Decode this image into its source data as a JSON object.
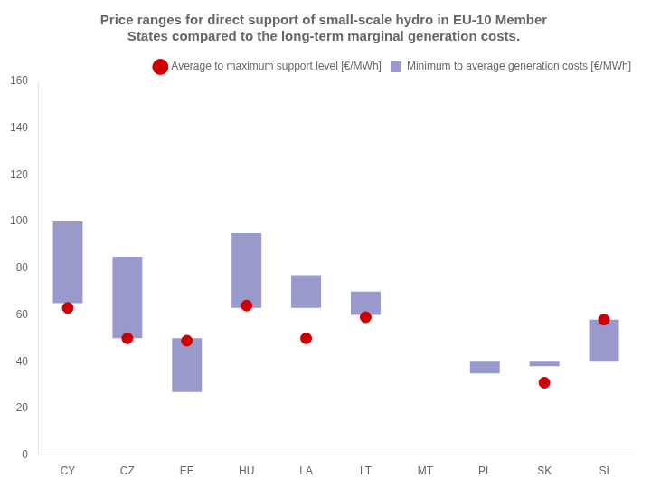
{
  "chart_data": {
    "type": "bar",
    "title": [
      "Price ranges for direct support of small-scale hydro in EU-10 Member",
      "States compared to the long-term marginal generation costs."
    ],
    "categories": [
      "CY",
      "CZ",
      "EE",
      "HU",
      "LA",
      "LT",
      "MT",
      "PL",
      "SK",
      "SI"
    ],
    "series": [
      {
        "name": "Minimum to average generation costs [€/MWh]",
        "type": "bar",
        "color": "#9999cc",
        "values": [
          [
            65,
            100
          ],
          [
            50,
            85
          ],
          [
            27,
            50
          ],
          [
            63,
            95
          ],
          [
            63,
            77
          ],
          [
            60,
            70
          ],
          null,
          [
            35,
            40
          ],
          [
            38,
            40
          ],
          [
            40,
            58
          ]
        ]
      },
      {
        "name": "Average to maximum support level [€/MWh]",
        "type": "scatter",
        "marker": "circle",
        "color": "#cc0000",
        "values": [
          63,
          50,
          49,
          64,
          50,
          59,
          null,
          null,
          31,
          58
        ]
      }
    ],
    "ylim": [
      0,
      160
    ],
    "yticks": [
      0,
      20,
      40,
      60,
      80,
      100,
      120,
      140,
      160
    ],
    "grid": false,
    "legend": "upper right"
  }
}
